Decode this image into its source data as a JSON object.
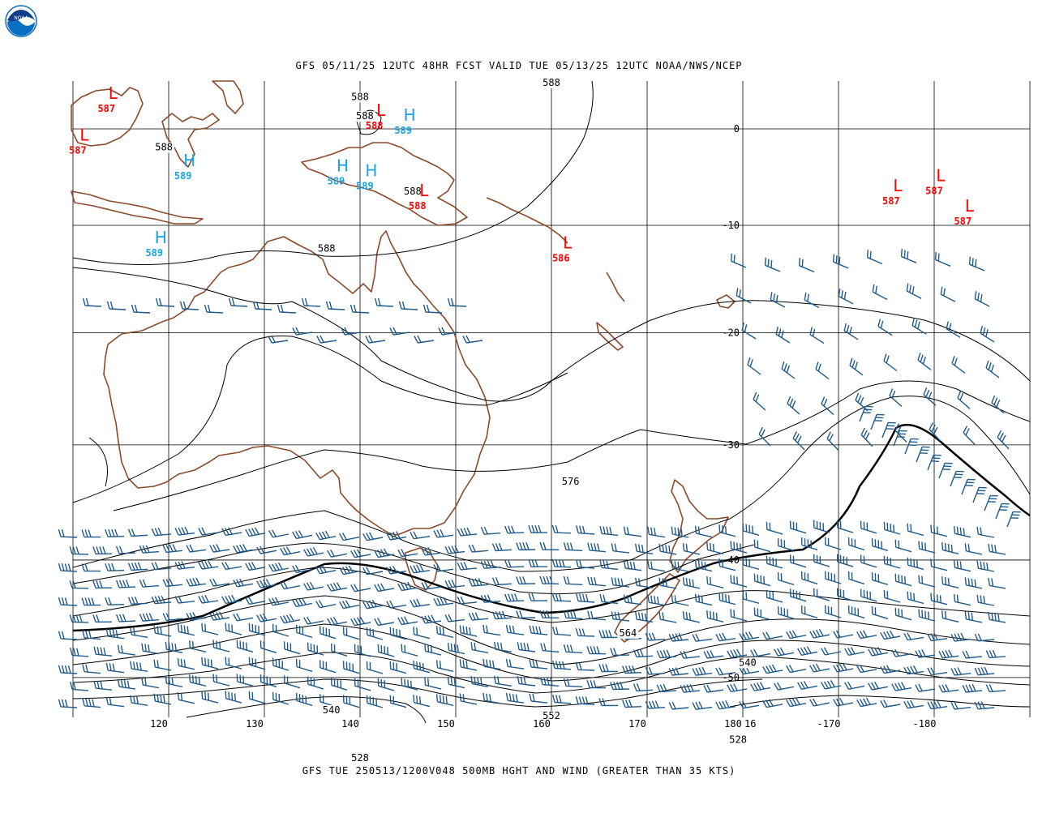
{
  "header": {
    "title": "GFS 05/11/25 12UTC 48HR FCST VALID TUE 05/13/25 12UTC NOAA/NWS/NCEP",
    "logo_text": "NOAA"
  },
  "footer": {
    "caption": "GFS TUE 250513/1200V048 500MB HGHT AND WIND (GREATER THAN 35 KTS)"
  },
  "colors": {
    "coast": "#8b4a2b",
    "grid": "#000000",
    "contour": "#000000",
    "barb": "#1f5a8a",
    "low": "#ff0000",
    "high": "#1aa3e6",
    "logo_blue": "#0a6fc2"
  },
  "map": {
    "lon_labels": [
      {
        "text": "120",
        "lon": 120
      },
      {
        "text": "130",
        "lon": 130
      },
      {
        "text": "140",
        "lon": 140
      },
      {
        "text": "150",
        "lon": 150
      },
      {
        "text": "160",
        "lon": 160
      },
      {
        "text": "170",
        "lon": 170
      },
      {
        "text": "180",
        "lon": 180
      },
      {
        "text": "-170",
        "lon": 190
      },
      {
        "text": "-180",
        "lon": 200
      }
    ],
    "lat_labels": [
      {
        "text": "0",
        "lat": 0
      },
      {
        "text": "-10",
        "lat": -10
      },
      {
        "text": "-20",
        "lat": -20
      },
      {
        "text": "-30",
        "lat": -30
      },
      {
        "text": "-40",
        "lat": -40
      },
      {
        "text": "-50",
        "lat": -50
      }
    ],
    "extra_labels": [
      "16"
    ],
    "contour_labels": [
      {
        "text": "588",
        "lon": 160,
        "lat": 4.5
      },
      {
        "text": "588",
        "lon": 140,
        "lat": 3.0
      },
      {
        "text": "588",
        "lon": 140.5,
        "lat": 1.0
      },
      {
        "text": "588",
        "lon": 119.5,
        "lat": -2.5
      },
      {
        "text": "588",
        "lon": 145.5,
        "lat": -7.0
      },
      {
        "text": "588",
        "lon": 136.5,
        "lat": -12.5
      },
      {
        "text": "576",
        "lon": 162,
        "lat": -33.5
      },
      {
        "text": "564",
        "lon": 168,
        "lat": -46.5
      },
      {
        "text": "552",
        "lon": 160,
        "lat": -53.5
      },
      {
        "text": "540",
        "lon": 137,
        "lat": -53.0
      },
      {
        "text": "540",
        "lon": 180.5,
        "lat": -49.0
      },
      {
        "text": "528",
        "lon": 140,
        "lat": -57.0
      },
      {
        "text": "528",
        "lon": 179.5,
        "lat": -55.5
      }
    ],
    "centers": [
      {
        "type": "L",
        "value": "587",
        "lon": 113.5,
        "lat": 2.8
      },
      {
        "type": "L",
        "value": "587",
        "lon": 110.5,
        "lat": -1.8
      },
      {
        "type": "L",
        "value": "588",
        "lon": 141.5,
        "lat": 1.0
      },
      {
        "type": "L",
        "value": "588",
        "lon": 146,
        "lat": -7.5
      },
      {
        "type": "L",
        "value": "586",
        "lon": 161,
        "lat": -12.5
      },
      {
        "type": "L",
        "value": "587",
        "lon": 195.5,
        "lat": -7.0
      },
      {
        "type": "L",
        "value": "587",
        "lon": 200,
        "lat": -6.0
      },
      {
        "type": "L",
        "value": "587",
        "lon": 203,
        "lat": -9.0
      },
      {
        "type": "H",
        "value": "589",
        "lon": 144.5,
        "lat": 0.5
      },
      {
        "type": "H",
        "value": "589",
        "lon": 121.5,
        "lat": -4.5
      },
      {
        "type": "H",
        "value": "589",
        "lon": 137.5,
        "lat": -5.0
      },
      {
        "type": "H",
        "value": "589",
        "lon": 140.5,
        "lat": -5.5
      },
      {
        "type": "H",
        "value": "589",
        "lon": 118.5,
        "lat": -12.0
      }
    ]
  }
}
